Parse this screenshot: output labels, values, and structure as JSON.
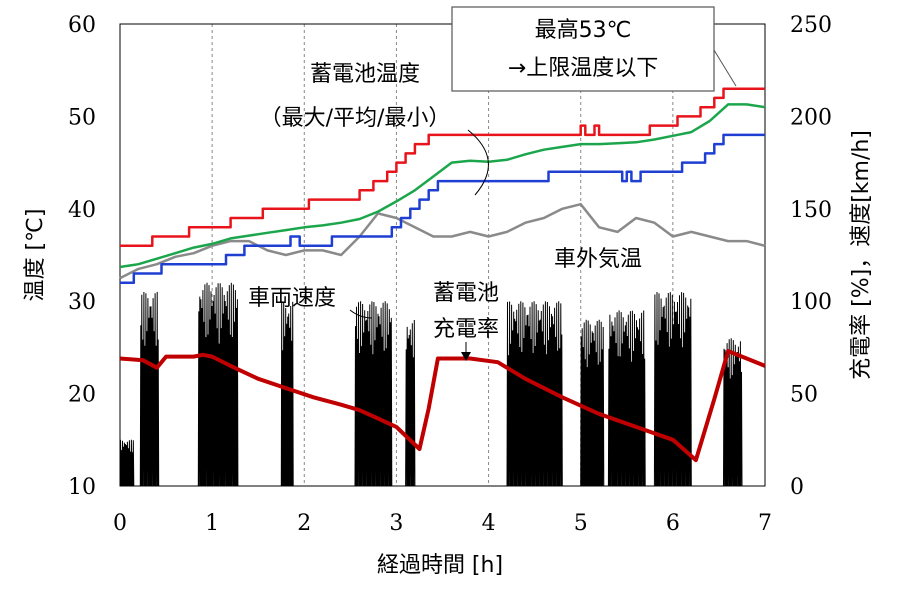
{
  "chart_data": {
    "type": "line",
    "xlabel": "経過時間 [h]",
    "ylabel_left": "温度 [℃]",
    "ylabel_right": "充電率 [%]，速度[km/h]",
    "xlim": [
      0,
      7
    ],
    "ylim_left": [
      10,
      60
    ],
    "ylim_right": [
      0,
      250
    ],
    "x_ticks": [
      "0",
      "1",
      "2",
      "3",
      "4",
      "5",
      "6",
      "7"
    ],
    "y_ticks_left": [
      "10",
      "20",
      "30",
      "40",
      "50",
      "60"
    ],
    "y_ticks_right": [
      "0",
      "50",
      "100",
      "150",
      "200",
      "250"
    ],
    "grid": "vertical-dashed",
    "annotations": {
      "battery_temp": [
        "蓄電池温度",
        "（最大/平均/最小）"
      ],
      "ambient": "車外気温",
      "vehicle_speed": "車両速度",
      "soc": [
        "蓄電池",
        "充電率"
      ],
      "max_box": [
        "最高53℃",
        "→上限温度以下"
      ]
    },
    "series": [
      {
        "name": "最大",
        "axis": "left",
        "color": "#e8141b",
        "step": true,
        "x": [
          0,
          0.35,
          0.75,
          1.2,
          1.55,
          1.8,
          2.05,
          2.6,
          2.75,
          2.9,
          3.0,
          3.1,
          3.2,
          3.35,
          3.45,
          4.0,
          4.5,
          4.85,
          5.0,
          5.05,
          5.15,
          5.2,
          5.25,
          5.75,
          5.85,
          5.95,
          6.05,
          6.15,
          6.3,
          6.45,
          6.55,
          6.6,
          7.0
        ],
        "y": [
          36,
          37,
          38,
          39,
          40,
          40,
          41,
          42,
          43,
          44,
          45,
          46,
          47,
          48,
          48,
          48,
          48,
          48,
          49,
          48,
          49,
          48,
          48,
          49,
          49,
          49,
          50,
          50,
          51,
          52,
          53,
          53,
          53
        ]
      },
      {
        "name": "平均",
        "axis": "left",
        "color": "#1ca64c",
        "step": false,
        "x": [
          0,
          0.2,
          0.4,
          0.6,
          0.8,
          1.0,
          1.2,
          1.4,
          1.6,
          1.8,
          2.0,
          2.2,
          2.4,
          2.6,
          2.8,
          3.0,
          3.2,
          3.4,
          3.6,
          3.8,
          4.0,
          4.2,
          4.4,
          4.6,
          4.8,
          5.0,
          5.2,
          5.4,
          5.6,
          5.8,
          6.0,
          6.2,
          6.4,
          6.6,
          6.8,
          7.0
        ],
        "y": [
          33.7,
          34.0,
          34.6,
          35.2,
          35.8,
          36.2,
          36.8,
          37.1,
          37.4,
          37.7,
          38.0,
          38.2,
          38.5,
          38.9,
          39.7,
          40.8,
          42.0,
          43.5,
          45.0,
          45.2,
          45.1,
          45.3,
          45.9,
          46.4,
          46.7,
          47.0,
          47.0,
          47.1,
          47.2,
          47.5,
          47.9,
          48.3,
          49.5,
          51.3,
          51.3,
          51.0
        ]
      },
      {
        "name": "最小",
        "axis": "left",
        "color": "#1f3fd2",
        "step": true,
        "x": [
          0,
          0.15,
          0.45,
          0.85,
          1.15,
          1.35,
          1.55,
          1.85,
          1.95,
          2.3,
          2.7,
          2.95,
          3.05,
          3.15,
          3.25,
          3.35,
          3.45,
          4.0,
          4.5,
          4.65,
          4.85,
          5.0,
          5.45,
          5.5,
          5.55,
          5.65,
          6.0,
          6.1,
          6.25,
          6.35,
          6.45,
          6.55,
          6.65,
          7.0
        ],
        "y": [
          32,
          33,
          34,
          34,
          35,
          36,
          36,
          37,
          36,
          37,
          37,
          38,
          39,
          40,
          41,
          42,
          43,
          43,
          43,
          44,
          44,
          44,
          43,
          44,
          43,
          44,
          44,
          45,
          45,
          46,
          47,
          48,
          48,
          48
        ]
      },
      {
        "name": "車外気温",
        "axis": "left",
        "color": "#8a8a8a",
        "step": false,
        "x": [
          0,
          0.2,
          0.4,
          0.6,
          0.8,
          1.0,
          1.2,
          1.4,
          1.6,
          1.8,
          2.0,
          2.2,
          2.4,
          2.6,
          2.8,
          3.0,
          3.2,
          3.4,
          3.6,
          3.8,
          4.0,
          4.2,
          4.4,
          4.6,
          4.8,
          5.0,
          5.2,
          5.4,
          5.6,
          5.8,
          6.0,
          6.2,
          6.4,
          6.6,
          6.8,
          7.0
        ],
        "y": [
          32.5,
          33.5,
          34.0,
          34.8,
          35.2,
          36.0,
          36.5,
          36.5,
          35.5,
          35.0,
          35.5,
          35.5,
          35.0,
          37.0,
          39.5,
          39.0,
          38.0,
          37.0,
          37.0,
          37.5,
          37.0,
          37.5,
          38.5,
          39.0,
          40.0,
          40.5,
          38.0,
          37.5,
          39.0,
          38.5,
          37.0,
          37.5,
          37.0,
          36.5,
          36.5,
          36.0
        ]
      },
      {
        "name": "充電率",
        "axis": "right",
        "color": "#c00000",
        "step": false,
        "x": [
          0,
          0.25,
          0.4,
          0.5,
          0.8,
          0.9,
          1.0,
          1.2,
          1.5,
          1.8,
          2.1,
          2.4,
          2.6,
          3.0,
          3.25,
          3.35,
          3.45,
          3.8,
          4.1,
          4.4,
          4.8,
          5.2,
          5.6,
          6.0,
          6.25,
          6.45,
          6.6,
          6.75,
          7.0
        ],
        "y": [
          69,
          68,
          64,
          70,
          70,
          71,
          70,
          65,
          58,
          53,
          48,
          44,
          41,
          32,
          20,
          42,
          69,
          69,
          67,
          58,
          48,
          39,
          32,
          25,
          14,
          47,
          73,
          70,
          65
        ]
      },
      {
        "name": "車両速度",
        "axis": "right",
        "color": "#000000",
        "bursts": [
          {
            "x": [
              0.0,
              0.15
            ],
            "peak": 25
          },
          {
            "x": [
              0.22,
              0.42
            ],
            "peak": 105
          },
          {
            "x": [
              0.85,
              1.28
            ],
            "peak": 110
          },
          {
            "x": [
              1.75,
              1.88
            ],
            "peak": 100
          },
          {
            "x": [
              2.55,
              2.95
            ],
            "peak": 100
          },
          {
            "x": [
              3.1,
              3.2
            ],
            "peak": 90
          },
          {
            "x": [
              4.2,
              4.8
            ],
            "peak": 100
          },
          {
            "x": [
              5.0,
              5.25
            ],
            "peak": 90
          },
          {
            "x": [
              5.3,
              5.7
            ],
            "peak": 95
          },
          {
            "x": [
              5.8,
              6.2
            ],
            "peak": 105
          },
          {
            "x": [
              6.55,
              6.75
            ],
            "peak": 80
          }
        ]
      }
    ]
  }
}
